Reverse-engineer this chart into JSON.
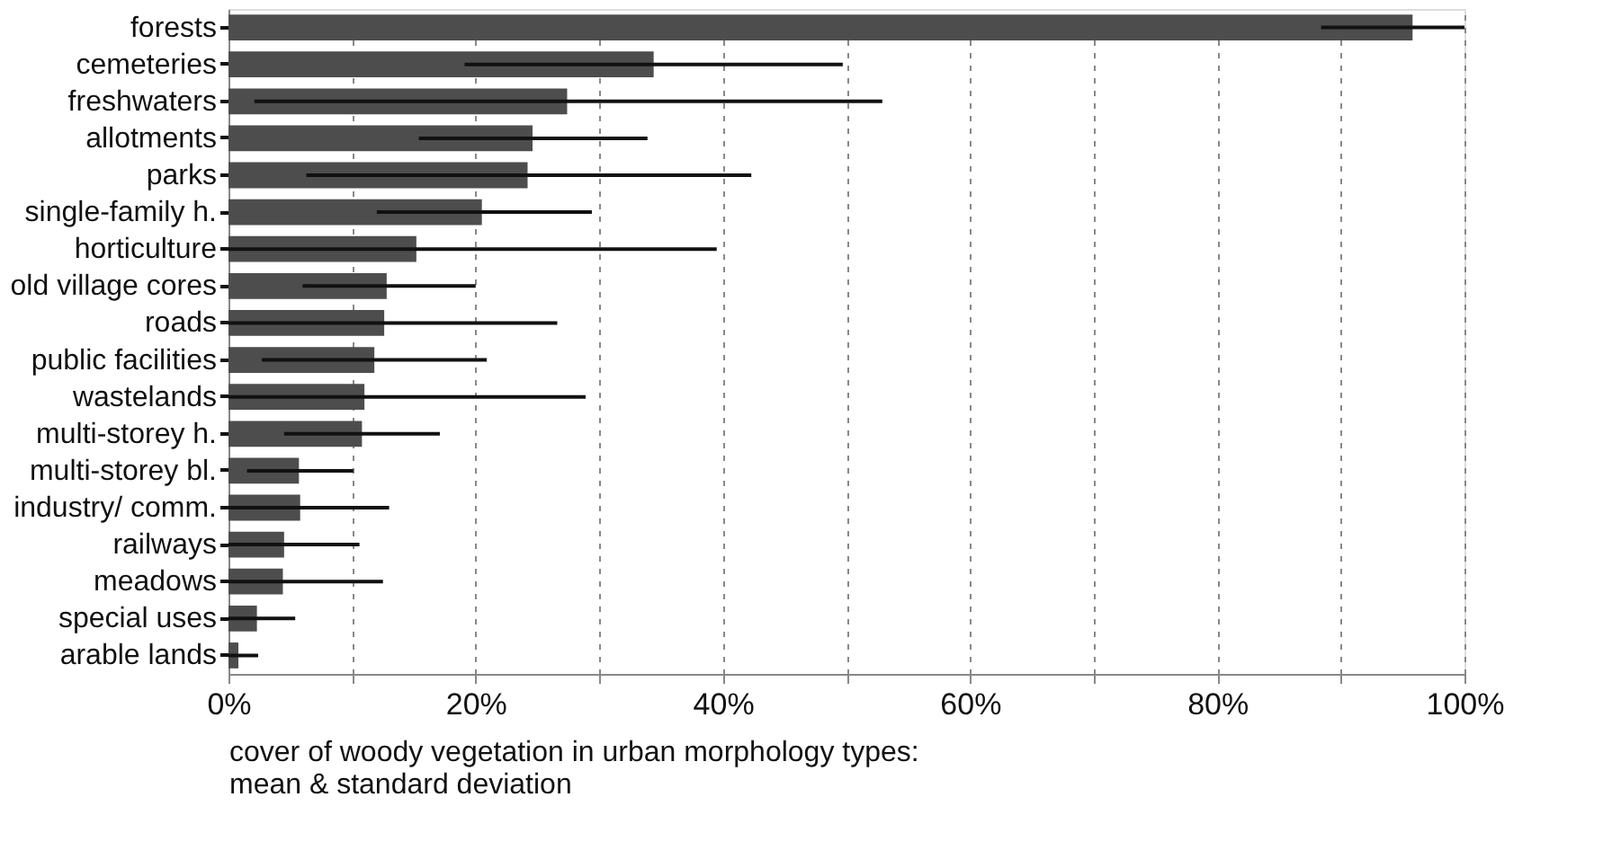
{
  "chart_data": {
    "type": "bar",
    "orientation": "horizontal",
    "xlabel": "cover of woody vegetation in urban morphology types: mean & standard deviation",
    "categories": [
      "forests",
      "cemeteries",
      "freshwaters",
      "allotments",
      "parks",
      "single-family h.",
      "horticulture",
      "old village cores",
      "roads",
      "public facilities",
      "wastelands",
      "multi-storey h.",
      "multi-storey bl.",
      "industry/ comm.",
      "railways",
      "meadows",
      "special uses",
      "arable lands"
    ],
    "values": [
      95.8,
      34.4,
      27.4,
      24.6,
      24.2,
      20.5,
      15.2,
      12.8,
      12.6,
      11.8,
      11.0,
      10.8,
      5.7,
      5.8,
      4.5,
      4.4,
      2.3,
      0.8
    ],
    "color": "#4d4d4d",
    "errors": [
      [
        88.4,
        100
      ],
      [
        19.1,
        49.7
      ],
      [
        2.1,
        52.9
      ],
      [
        15.4,
        33.9
      ],
      [
        6.3,
        42.3
      ],
      [
        12.0,
        29.4
      ],
      [
        0,
        39.5
      ],
      [
        6.0,
        20.0
      ],
      [
        0,
        26.6
      ],
      [
        2.7,
        20.9
      ],
      [
        0,
        28.9
      ],
      [
        4.5,
        17.1
      ],
      [
        1.5,
        10.1
      ],
      [
        0,
        13.0
      ],
      [
        0,
        10.6
      ],
      [
        0,
        12.5
      ],
      [
        0,
        5.4
      ],
      [
        0,
        2.4
      ]
    ],
    "xlim": [
      0,
      100
    ],
    "xticks": [
      {
        "value": 0,
        "label": "0%"
      },
      {
        "value": 10,
        "label": null
      },
      {
        "value": 20,
        "label": "20%"
      },
      {
        "value": 30,
        "label": null
      },
      {
        "value": 40,
        "label": "40%"
      },
      {
        "value": 50,
        "label": null
      },
      {
        "value": 60,
        "label": "60%"
      },
      {
        "value": 70,
        "label": null
      },
      {
        "value": 80,
        "label": "80%"
      },
      {
        "value": 90,
        "label": null
      },
      {
        "value": 100,
        "label": "100%"
      }
    ],
    "grid": "x"
  }
}
